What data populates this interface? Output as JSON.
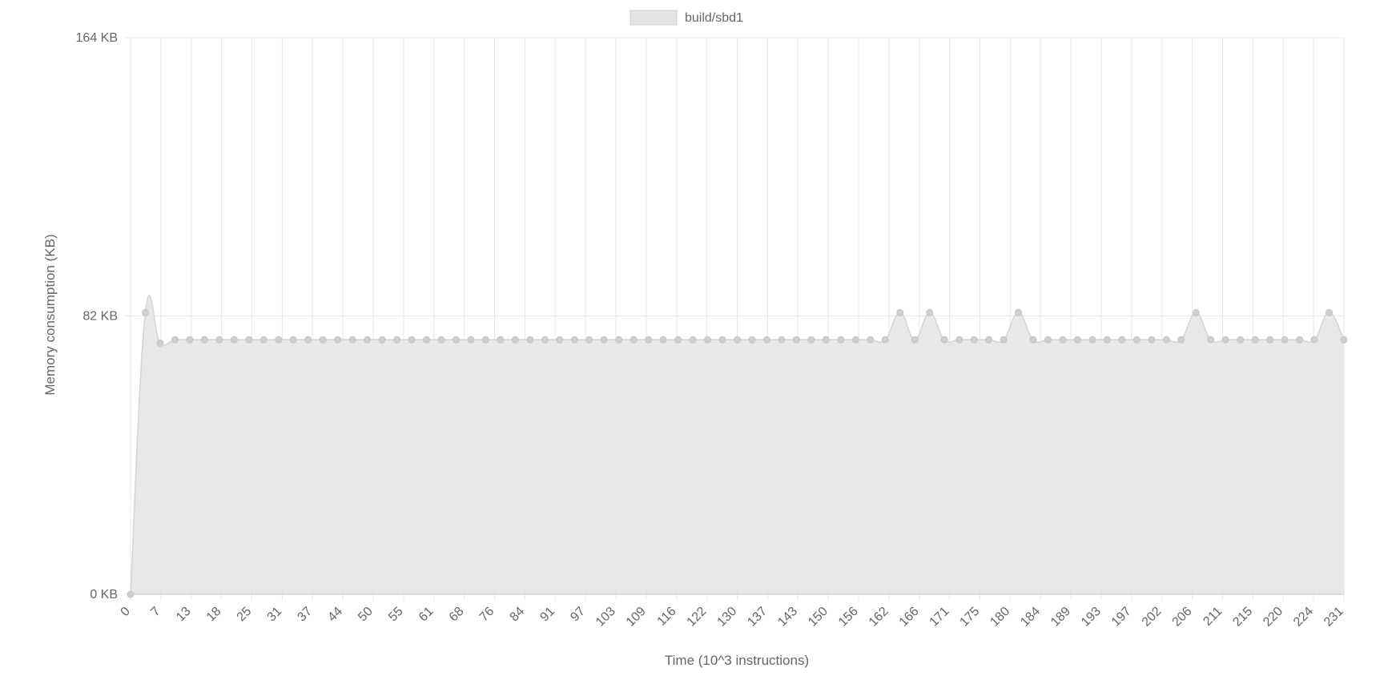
{
  "chart_data": {
    "type": "area",
    "title": "",
    "legend": {
      "position": "top-center",
      "entries": [
        {
          "name": "build/sbd1",
          "color": "#e4e4e4",
          "border": "#d0d0d0"
        }
      ]
    },
    "xlabel": "Time (10^3 instructions)",
    "ylabel": "Memory consumption (KB)",
    "ylim": [
      0,
      164
    ],
    "yticks": [
      {
        "value": 164,
        "label": "164 KB"
      },
      {
        "value": 82,
        "label": "82 KB"
      },
      {
        "value": 0,
        "label": "0 KB"
      }
    ],
    "grid": true,
    "colors": {
      "fill": "#e4e4e4",
      "line": "#d4d4d4",
      "point": "#cfcfcf",
      "grid": "#e8e8e8",
      "axis": "#c8c8c8",
      "tick_text": "#666666"
    },
    "x_tick_labels": [
      "0",
      "7",
      "13",
      "18",
      "25",
      "31",
      "37",
      "44",
      "50",
      "55",
      "61",
      "68",
      "76",
      "84",
      "91",
      "97",
      "103",
      "109",
      "116",
      "122",
      "130",
      "137",
      "143",
      "150",
      "156",
      "162",
      "166",
      "171",
      "175",
      "180",
      "184",
      "189",
      "193",
      "197",
      "202",
      "206",
      "211",
      "215",
      "220",
      "224",
      "231"
    ],
    "series": [
      {
        "name": "build/sbd1",
        "values": [
          0,
          83,
          74,
          75,
          75,
          75,
          75,
          75,
          75,
          75,
          75,
          75,
          75,
          75,
          75,
          75,
          75,
          75,
          75,
          75,
          75,
          75,
          75,
          75,
          75,
          75,
          75,
          75,
          75,
          75,
          75,
          75,
          75,
          75,
          75,
          75,
          75,
          75,
          75,
          75,
          75,
          75,
          75,
          75,
          75,
          75,
          75,
          75,
          75,
          75,
          75,
          75,
          83,
          75,
          83,
          75,
          75,
          75,
          75,
          75,
          83,
          75,
          75,
          75,
          75,
          75,
          75,
          75,
          75,
          75,
          75,
          75,
          83,
          75,
          75,
          75,
          75,
          75,
          75,
          75,
          75,
          83,
          75
        ]
      }
    ]
  }
}
